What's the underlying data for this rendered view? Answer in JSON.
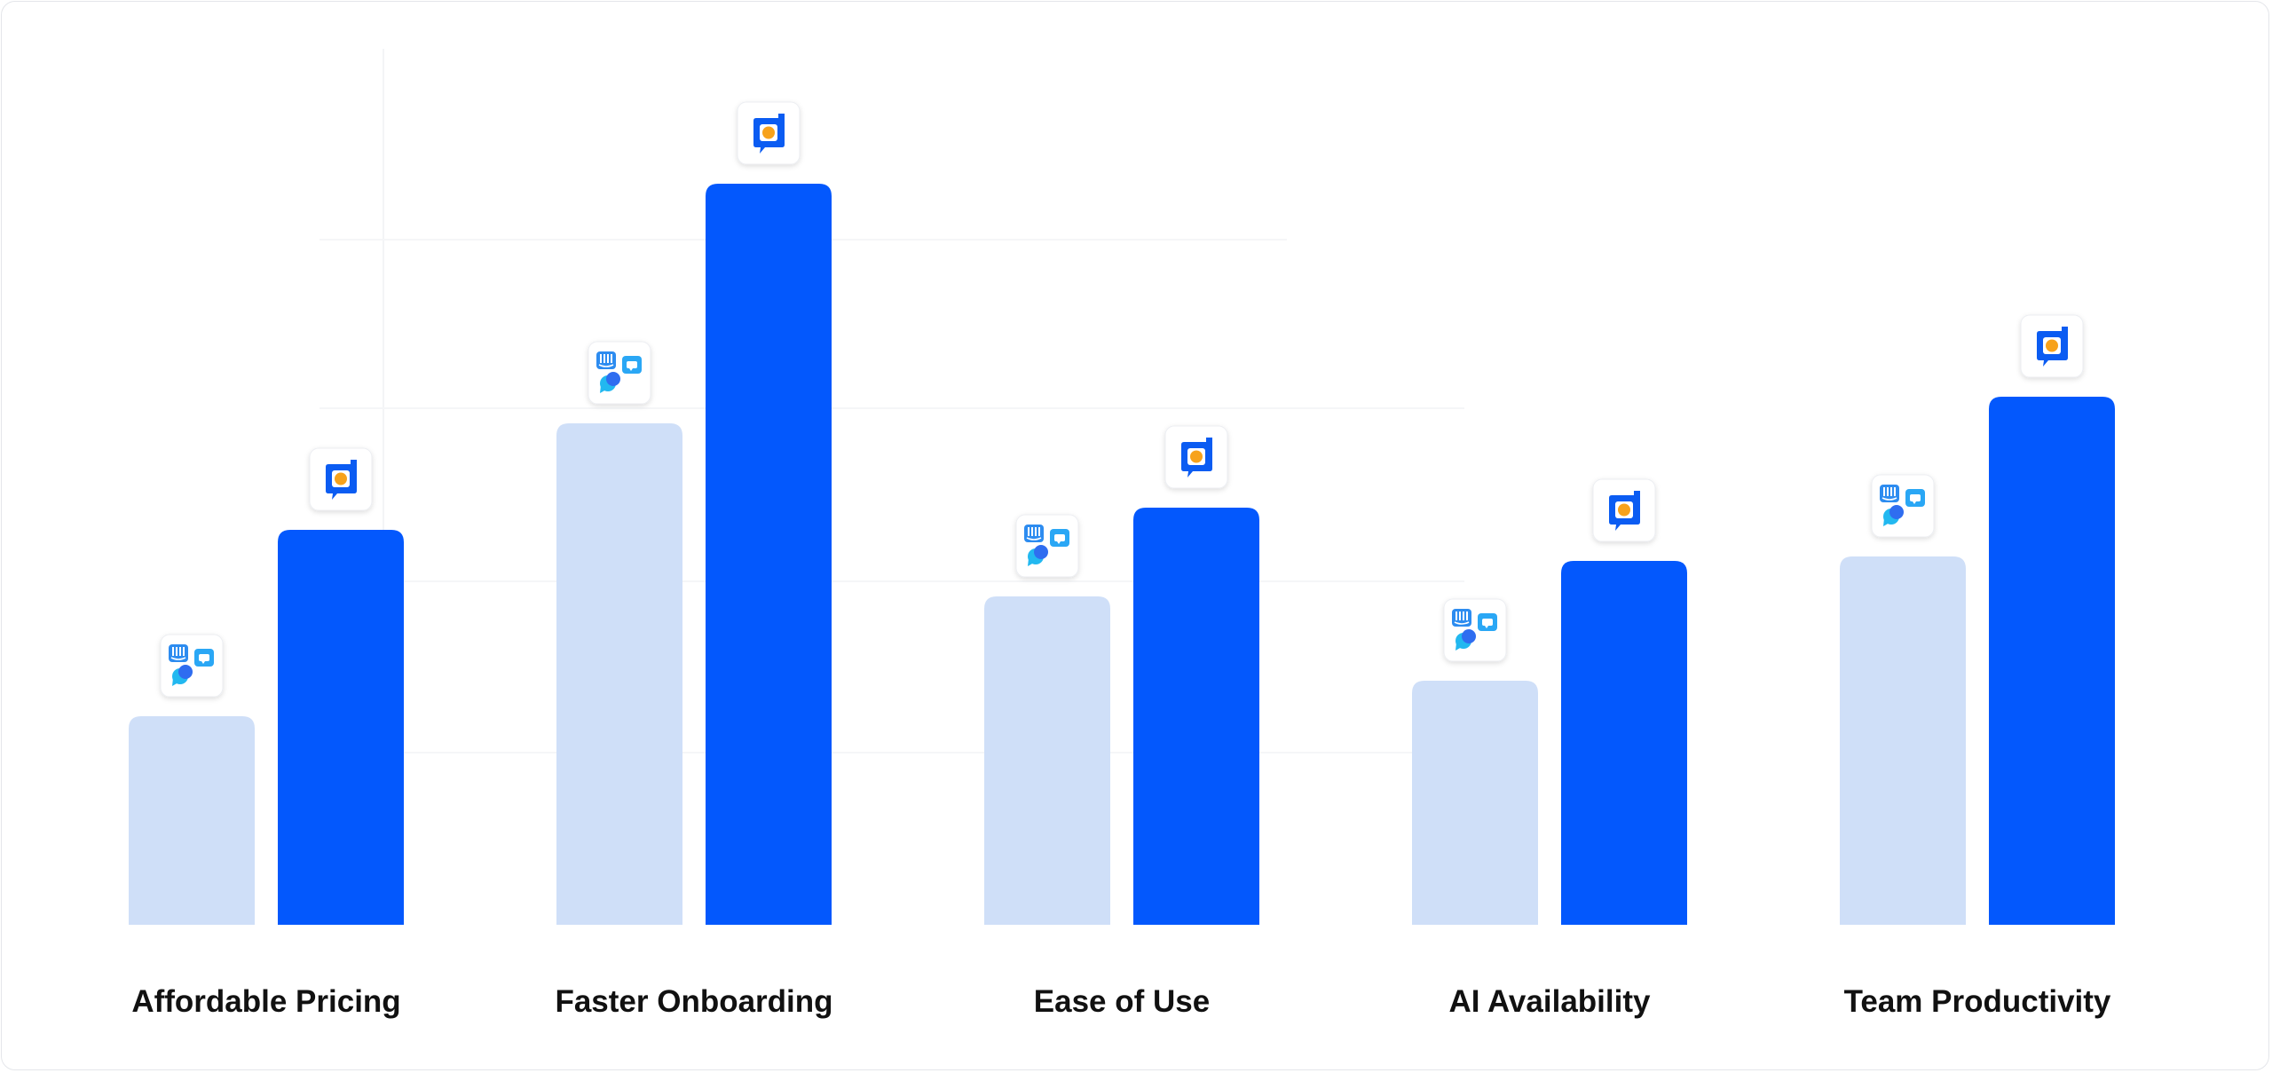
{
  "chart_data": {
    "type": "bar",
    "title": "",
    "xlabel": "",
    "ylabel": "",
    "categories": [
      "Affordable Pricing",
      "Faster Onboarding",
      "Ease of Use",
      "AI Availability",
      "Team Productivity"
    ],
    "series": [
      {
        "icon": "competitor-apps-icon",
        "color": "#cfdff8",
        "values": [
          23.5,
          56.5,
          37,
          27.5,
          41.5
        ]
      },
      {
        "icon": "brand-logo-icon",
        "color": "#0358fd",
        "values": [
          44.5,
          83.5,
          47,
          41,
          59.5
        ]
      }
    ],
    "ylim": [
      0,
      100
    ],
    "grid": false,
    "legend": "none"
  }
}
